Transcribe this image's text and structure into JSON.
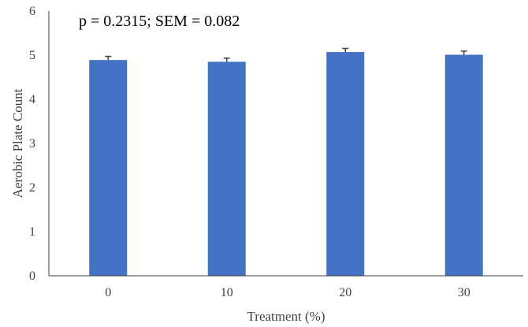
{
  "chart_data": {
    "type": "bar",
    "annotation": "p = 0.2315; SEM = 0.082",
    "xlabel": "Treatment (%)",
    "ylabel": "Aerobic  Plate Count",
    "categories": [
      "0",
      "10",
      "20",
      "30"
    ],
    "values": [
      4.89,
      4.85,
      5.07,
      5.01
    ],
    "error": [
      0.082,
      0.082,
      0.082,
      0.082
    ],
    "ylim": [
      0,
      6
    ],
    "yticks": [
      "0",
      "1",
      "2",
      "3",
      "4",
      "5",
      "6"
    ],
    "grid": false,
    "legend": "none",
    "colors": {
      "bar": "#4472C4",
      "axis": "#404040",
      "errorbar": "#404040"
    }
  }
}
